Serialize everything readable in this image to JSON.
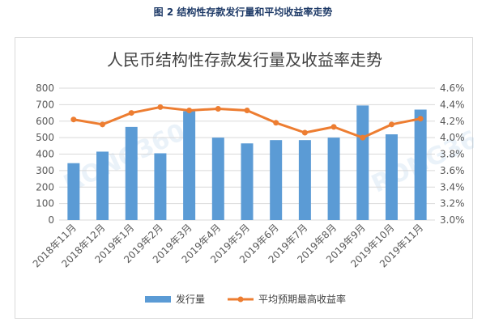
{
  "figure_caption": "图 2  结构性存款发行量和平均收益率走势",
  "chart_data": {
    "type": "bar",
    "title": "人民币结构性存款发行量及收益率走势",
    "categories": [
      "2018年11月",
      "2018年12月",
      "2019年1月",
      "2019年2月",
      "2019年3月",
      "2019年4月",
      "2019年5月",
      "2019年6月",
      "2019年7月",
      "2019年8月",
      "2019年9月",
      "2019年10月",
      "2019年11月"
    ],
    "series": [
      {
        "name": "发行量",
        "type": "bar",
        "axis": "left",
        "color": "#5b9bd5",
        "values": [
          345,
          415,
          565,
          405,
          660,
          500,
          465,
          485,
          485,
          500,
          695,
          520,
          670
        ]
      },
      {
        "name": "平均预期最高收益率",
        "type": "line",
        "axis": "right",
        "color": "#ed7d31",
        "values": [
          4.22,
          4.16,
          4.3,
          4.37,
          4.33,
          4.35,
          4.33,
          4.18,
          4.06,
          4.13,
          4.0,
          4.16,
          4.23
        ]
      }
    ],
    "y_left": {
      "min": 0,
      "max": 800,
      "step": 100,
      "tick_labels": [
        "0",
        "100",
        "200",
        "300",
        "400",
        "500",
        "600",
        "700",
        "800"
      ]
    },
    "y_right": {
      "min": 3.0,
      "max": 4.6,
      "step": 0.2,
      "tick_labels": [
        "3.0%",
        "3.2%",
        "3.4%",
        "3.6%",
        "3.8%",
        "4.0%",
        "4.2%",
        "4.4%",
        "4.6%"
      ]
    },
    "grid": "horizontal",
    "legend_position": "bottom"
  }
}
